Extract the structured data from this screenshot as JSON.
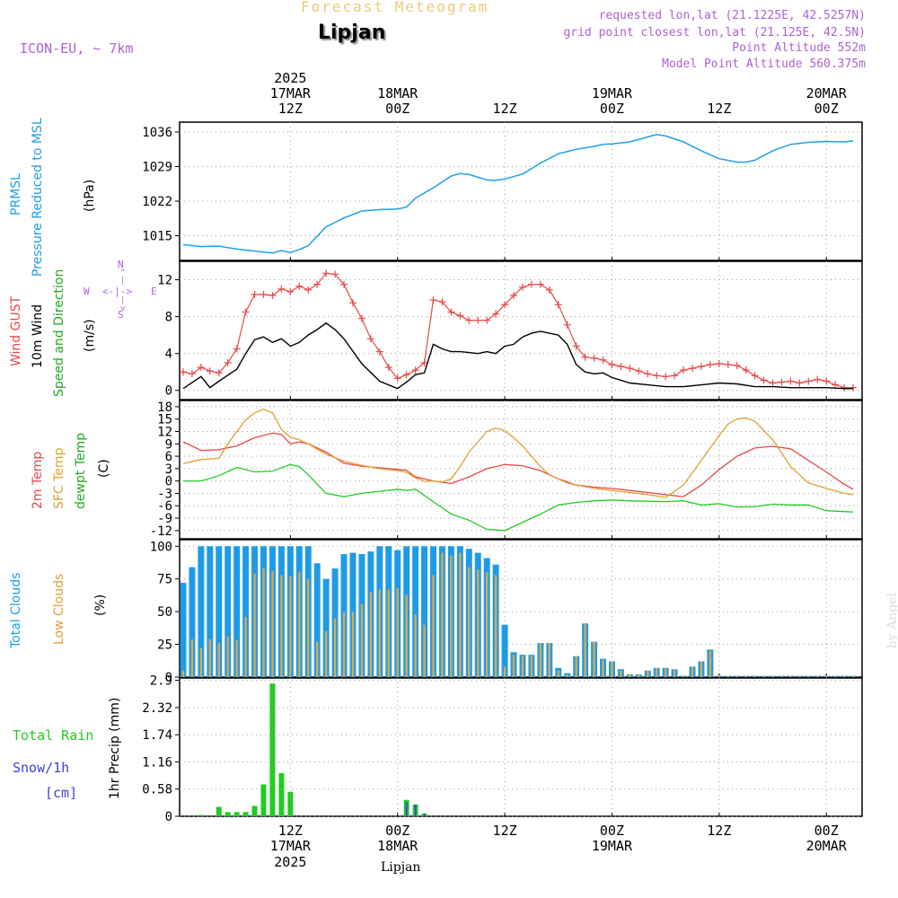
{
  "header": {
    "title": "Forecast Meteogram",
    "location": "Lipjan",
    "model": "ICON-EU, ~ 7km",
    "requested": "requested lon,lat (21.1225E, 42.5257N)",
    "grid_point": "grid point closest lon,lat (21.125E, 42.5N)",
    "point_altitude": "Point Altitude 552m",
    "model_altitude": "Model Point Altitude 560.375m"
  },
  "time_axis_top": [
    {
      "l1": "2025",
      "l2": "17MAR",
      "l3": "12Z",
      "t": 12
    },
    {
      "l1": "",
      "l2": "18MAR",
      "l3": "00Z",
      "t": 24
    },
    {
      "l1": "",
      "l2": "",
      "l3": "12Z",
      "t": 36
    },
    {
      "l1": "",
      "l2": "19MAR",
      "l3": "00Z",
      "t": 48
    },
    {
      "l1": "",
      "l2": "",
      "l3": "12Z",
      "t": 60
    },
    {
      "l1": "",
      "l2": "20MAR",
      "l3": "00Z",
      "t": 72
    }
  ],
  "time_axis_bottom": [
    {
      "l1": "12Z",
      "l2": "17MAR",
      "l3": "2025",
      "t": 12
    },
    {
      "l1": "00Z",
      "l2": "18MAR",
      "l3": "",
      "t": 24
    },
    {
      "l1": "12Z",
      "l2": "",
      "l3": "",
      "t": 36
    },
    {
      "l1": "00Z",
      "l2": "19MAR",
      "l3": "",
      "t": 48
    },
    {
      "l1": "12Z",
      "l2": "",
      "l3": "",
      "t": 60
    },
    {
      "l1": "00Z",
      "l2": "20MAR",
      "l3": "",
      "t": 72
    }
  ],
  "panel_labels": {
    "pressure": [
      "PRMSL",
      "Pressure Reduced to MSL"
    ],
    "pressure_unit": "(hPa)",
    "wind": [
      "Wind GUST",
      "10m Wind",
      "Speed and Direction"
    ],
    "wind_unit": "(m/s)",
    "compass": {
      "n": "N",
      "s": "S",
      "w": "W",
      "e": "E",
      "mid": "<-|->"
    },
    "temp": [
      "2m Temp",
      "SFC Temp",
      "dewpt Temp"
    ],
    "temp_unit": "(C)",
    "clouds": [
      "Total Clouds",
      "Low Clouds"
    ],
    "clouds_unit": "(%)",
    "precip_left": [
      "Total  Rain",
      "Snow/1h",
      "[cm]"
    ],
    "precip_unit": "1hr Precip (mm)"
  },
  "signature": "by Angel",
  "bottom_location": "Lipjan",
  "colors": {
    "pressure": "#1ea0e6",
    "gust": "#e84848",
    "wind": "#000000",
    "t2m": "#e84848",
    "sfc": "#e0a030",
    "dew": "#22cc22",
    "total_cloud": "#1e9be6",
    "low_cloud": "#d8a850",
    "rain": "#22cc22",
    "snow": "#4040e0",
    "header_purple": "#b060d8"
  },
  "chart_data": [
    {
      "type": "line",
      "name_panel": "pressure",
      "ylim": [
        1010,
        1038
      ],
      "yticks": [
        1015,
        1022,
        1029,
        1036
      ],
      "x": [
        0,
        2,
        4,
        6,
        8,
        10,
        11,
        12,
        13,
        14,
        16,
        18,
        20,
        22,
        24,
        25,
        26,
        28,
        30,
        31,
        32,
        34,
        35,
        36,
        38,
        40,
        42,
        44,
        46,
        47,
        48,
        50,
        52,
        53,
        54,
        56,
        58,
        60,
        62,
        63,
        64,
        66,
        68,
        70,
        72,
        74,
        75
      ],
      "values": [
        1013.2,
        1012.8,
        1012.9,
        1012.3,
        1011.9,
        1011.5,
        1012.0,
        1011.6,
        1012.2,
        1013.0,
        1016.8,
        1018.6,
        1020.0,
        1020.3,
        1020.4,
        1020.8,
        1022.6,
        1024.7,
        1027.1,
        1027.6,
        1027.4,
        1026.3,
        1026.2,
        1026.5,
        1027.5,
        1029.7,
        1031.6,
        1032.5,
        1033.1,
        1033.5,
        1033.6,
        1034.0,
        1035.0,
        1035.5,
        1035.2,
        1034.0,
        1032.2,
        1030.6,
        1029.9,
        1029.9,
        1030.3,
        1032.2,
        1033.5,
        1033.9,
        1034.1,
        1034.0,
        1034.2
      ]
    },
    {
      "type": "line",
      "name_panel": "wind",
      "ylim": [
        -1,
        14
      ],
      "yticks": [
        0,
        4,
        8,
        12
      ],
      "series": [
        {
          "name": "Wind GUST",
          "x": [
            0,
            1,
            2,
            3,
            4,
            5,
            6,
            7,
            8,
            9,
            10,
            11,
            12,
            13,
            14,
            15,
            16,
            17,
            18,
            19,
            20,
            21,
            22,
            23,
            24,
            25,
            26,
            27,
            28,
            29,
            30,
            31,
            32,
            33,
            34,
            35,
            36,
            37,
            38,
            39,
            40,
            41,
            42,
            43,
            44,
            45,
            46,
            47,
            48,
            49,
            50,
            51,
            52,
            53,
            54,
            55,
            56,
            57,
            58,
            59,
            60,
            61,
            62,
            63,
            64,
            65,
            66,
            67,
            68,
            69,
            70,
            71,
            72,
            73,
            74,
            75
          ],
          "values": [
            2.0,
            1.8,
            2.5,
            2.1,
            1.9,
            3.0,
            4.5,
            8.5,
            10.4,
            10.4,
            10.3,
            11.0,
            10.7,
            11.3,
            10.9,
            11.5,
            12.7,
            12.6,
            11.5,
            9.5,
            7.8,
            5.6,
            4.2,
            2.5,
            1.3,
            1.7,
            2.2,
            3.0,
            9.8,
            9.6,
            8.5,
            8.1,
            7.6,
            7.6,
            7.6,
            8.3,
            9.3,
            10.3,
            11.2,
            11.5,
            11.5,
            10.9,
            9.3,
            7.1,
            4.8,
            3.6,
            3.5,
            3.3,
            2.8,
            2.6,
            2.4,
            2.1,
            1.8,
            1.6,
            1.5,
            1.6,
            2.2,
            2.4,
            2.6,
            2.8,
            2.9,
            2.8,
            2.7,
            2.2,
            1.6,
            1.1,
            0.8,
            0.9,
            1.0,
            0.8,
            1.0,
            1.2,
            1.0,
            0.6,
            0.3,
            0.3
          ]
        },
        {
          "name": "10m Wind",
          "x": [
            0,
            2,
            3,
            4,
            6,
            7,
            8,
            9,
            10,
            11,
            12,
            13,
            14,
            15,
            16,
            17,
            18,
            20,
            22,
            24,
            25,
            26,
            27,
            28,
            29,
            30,
            31,
            32,
            33,
            34,
            35,
            36,
            37,
            38,
            39,
            40,
            41,
            42,
            43,
            44,
            45,
            46,
            47,
            48,
            50,
            52,
            54,
            56,
            58,
            60,
            62,
            64,
            66,
            68,
            70,
            72,
            74,
            75
          ],
          "values": [
            0.2,
            1.5,
            0.3,
            1.0,
            2.3,
            4.0,
            5.5,
            5.8,
            5.2,
            5.6,
            4.8,
            5.2,
            6.0,
            6.6,
            7.3,
            6.6,
            5.6,
            2.9,
            1.0,
            0.2,
            0.9,
            1.7,
            1.9,
            5.0,
            4.5,
            4.2,
            4.2,
            4.1,
            4.0,
            4.2,
            4.0,
            4.8,
            5.0,
            5.8,
            6.2,
            6.4,
            6.2,
            6.0,
            5.0,
            2.8,
            2.0,
            1.8,
            1.9,
            1.4,
            0.8,
            0.6,
            0.4,
            0.4,
            0.6,
            0.8,
            0.7,
            0.4,
            0.4,
            0.3,
            0.3,
            0.3,
            0.2,
            0.2
          ]
        }
      ]
    },
    {
      "type": "line",
      "name_panel": "temperature",
      "ylim": [
        -14,
        19.5
      ],
      "yticks": [
        -12,
        -9,
        -6,
        -3,
        0,
        3,
        6,
        9,
        12,
        15,
        18
      ],
      "series": [
        {
          "name": "2m Temp",
          "x": [
            0,
            2,
            4,
            6,
            8,
            10,
            11,
            12,
            13,
            14,
            16,
            18,
            20,
            22,
            24,
            25,
            26,
            27,
            28,
            30,
            32,
            34,
            36,
            38,
            40,
            42,
            44,
            46,
            48,
            50,
            52,
            54,
            56,
            58,
            60,
            62,
            64,
            66,
            68,
            70,
            72,
            74,
            75
          ],
          "values": [
            9.5,
            7.4,
            7.6,
            8.5,
            10.5,
            11.6,
            11.3,
            9.0,
            9.5,
            9.0,
            7.0,
            4.3,
            3.6,
            3.2,
            2.8,
            2.6,
            1.0,
            0.5,
            0.0,
            -0.6,
            1.0,
            3.0,
            4.0,
            3.7,
            2.5,
            0.5,
            -1.0,
            -1.5,
            -1.8,
            -2.3,
            -2.8,
            -3.3,
            -3.8,
            -1.0,
            2.8,
            6.0,
            8.0,
            8.4,
            7.8,
            5.0,
            2.2,
            -0.8,
            -2.0
          ]
        },
        {
          "name": "SFC Temp",
          "x": [
            0,
            2,
            4,
            5,
            6,
            7,
            8,
            9,
            10,
            11,
            12,
            13,
            14,
            16,
            18,
            20,
            22,
            24,
            25,
            26,
            27,
            28,
            29,
            30,
            31,
            32,
            33,
            34,
            35,
            36,
            37,
            38,
            39,
            40,
            41,
            42,
            43,
            44,
            46,
            48,
            50,
            52,
            54,
            56,
            58,
            60,
            61,
            62,
            63,
            64,
            66,
            68,
            70,
            72,
            74,
            75
          ],
          "values": [
            4.2,
            5.2,
            5.5,
            9.0,
            12.0,
            14.8,
            16.5,
            17.4,
            16.5,
            12.5,
            10.6,
            10.0,
            9.0,
            6.5,
            4.8,
            3.8,
            3.0,
            2.5,
            2.1,
            0.8,
            -0.1,
            0.0,
            -0.2,
            0.5,
            3.5,
            7.0,
            9.5,
            12.0,
            12.8,
            12.2,
            10.5,
            8.5,
            6.0,
            3.5,
            1.5,
            0.5,
            -0.5,
            -1.0,
            -1.8,
            -2.3,
            -2.8,
            -3.3,
            -4.0,
            -1.0,
            5.0,
            11.0,
            13.8,
            15.0,
            15.3,
            14.5,
            10.0,
            3.5,
            -0.5,
            -1.8,
            -3.0,
            -3.3
          ]
        },
        {
          "name": "dewpt Temp",
          "x": [
            0,
            2,
            4,
            6,
            8,
            10,
            12,
            13,
            14,
            16,
            18,
            20,
            22,
            24,
            25,
            26,
            28,
            30,
            32,
            34,
            36,
            38,
            40,
            42,
            44,
            46,
            48,
            50,
            52,
            54,
            56,
            58,
            60,
            62,
            64,
            66,
            68,
            70,
            72,
            74,
            75
          ],
          "values": [
            0.0,
            0.0,
            1.3,
            3.3,
            2.2,
            2.4,
            4.0,
            3.5,
            1.5,
            -3.0,
            -3.8,
            -3.0,
            -2.5,
            -2.0,
            -2.3,
            -2.0,
            -5.0,
            -8.0,
            -9.5,
            -11.7,
            -12.0,
            -10.0,
            -8.0,
            -5.8,
            -5.2,
            -4.8,
            -4.6,
            -4.8,
            -4.9,
            -5.0,
            -4.8,
            -5.8,
            -5.5,
            -6.3,
            -6.2,
            -5.6,
            -5.8,
            -5.8,
            -7.2,
            -7.4,
            -7.5
          ]
        }
      ]
    },
    {
      "type": "bar",
      "name_panel": "clouds",
      "ylim": [
        0,
        105
      ],
      "yticks": [
        0,
        25,
        50,
        75,
        100
      ],
      "x": [
        0,
        1,
        2,
        3,
        4,
        5,
        6,
        7,
        8,
        9,
        10,
        11,
        12,
        13,
        14,
        15,
        16,
        17,
        18,
        19,
        20,
        21,
        22,
        23,
        24,
        25,
        26,
        27,
        28,
        29,
        30,
        31,
        32,
        33,
        34,
        35,
        36,
        37,
        38,
        39,
        40,
        41,
        42,
        43,
        44,
        45,
        46,
        47,
        48,
        49,
        50,
        51,
        52,
        53,
        54,
        55,
        56,
        57,
        58,
        59,
        60,
        61,
        62,
        63,
        64,
        65,
        66,
        67,
        68,
        69,
        70,
        71,
        72,
        73,
        74,
        75
      ],
      "series": [
        {
          "name": "Total Clouds",
          "values": [
            72,
            84,
            100,
            100,
            100,
            100,
            100,
            100,
            100,
            100,
            100,
            100,
            100,
            100,
            100,
            87,
            75,
            83,
            94,
            95,
            94,
            96,
            100,
            100,
            97,
            100,
            100,
            100,
            100,
            100,
            100,
            100,
            98,
            95,
            91,
            86,
            40,
            19,
            17,
            17,
            26,
            26,
            7,
            3,
            16,
            41,
            27,
            14,
            12,
            6,
            2,
            2,
            5,
            7,
            7,
            6,
            1,
            8,
            12,
            21,
            1,
            1,
            1,
            1,
            1,
            1,
            1,
            1,
            1,
            1,
            1,
            1,
            1,
            1,
            1,
            1
          ]
        },
        {
          "name": "Low Clouds",
          "values": [
            5,
            29,
            22,
            29,
            26,
            31,
            28,
            46,
            79,
            83,
            81,
            78,
            77,
            80,
            75,
            27,
            35,
            45,
            50,
            50,
            56,
            65,
            67,
            67,
            68,
            63,
            48,
            40,
            78,
            95,
            93,
            95,
            84,
            82,
            80,
            78,
            8,
            17,
            16,
            16,
            26,
            26,
            5,
            2,
            16,
            41,
            27,
            13,
            12,
            5,
            2,
            2,
            5,
            7,
            7,
            6,
            1,
            8,
            12,
            20,
            1,
            1,
            1,
            1,
            1,
            1,
            1,
            1,
            1,
            1,
            1,
            1,
            1,
            1,
            1,
            1
          ]
        }
      ]
    },
    {
      "type": "bar",
      "name_panel": "precipitation",
      "ylim": [
        0,
        2.95
      ],
      "yticks": [
        0,
        0.58,
        1.16,
        1.74,
        2.32,
        2.9
      ],
      "x": [
        2,
        3,
        4,
        5,
        6,
        7,
        8,
        9,
        10,
        11,
        12,
        13,
        25,
        26,
        27
      ],
      "series": [
        {
          "name": "Total Rain",
          "values": [
            0.03,
            0.0,
            0.2,
            0.09,
            0.09,
            0.09,
            0.22,
            0.68,
            2.83,
            0.92,
            0.52,
            0.0,
            0.35,
            0.25,
            0.06
          ]
        },
        {
          "name": "Snow/1h",
          "values": [
            0,
            0,
            0,
            0,
            0,
            0,
            0,
            0,
            0,
            0,
            0,
            0,
            0.3,
            0.25,
            0.05
          ]
        }
      ]
    }
  ]
}
